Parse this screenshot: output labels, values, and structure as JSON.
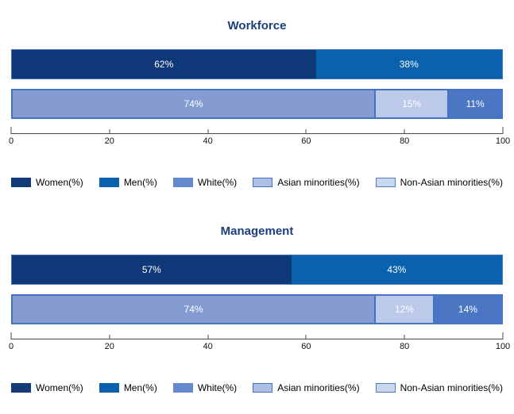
{
  "style": {
    "title_color": "#1b3e7d",
    "axis_color": "#4a4a4a",
    "tick_label_color": "#111111",
    "bar_value_label_color": "#ffffff"
  },
  "chart_data": [
    {
      "type": "bar",
      "stacked": true,
      "orientation": "horizontal",
      "title": "Workforce",
      "xlim": [
        0,
        100
      ],
      "x_ticks": [
        0,
        20,
        40,
        60,
        80,
        100
      ],
      "grid": false,
      "legend_position": "bottom",
      "rows": [
        {
          "category": "gender",
          "border": "#4a77c5",
          "segment_dividers": false,
          "segments": [
            {
              "key": "women",
              "name": "Women(%)",
              "value": 62,
              "label": "62%",
              "fill": "#0e3878"
            },
            {
              "key": "men",
              "name": "Men(%)",
              "value": 38,
              "label": "38%",
              "fill": "#0a61ae"
            }
          ]
        },
        {
          "category": "ethnicity",
          "border": "#4472c4",
          "segment_dividers": true,
          "segments": [
            {
              "key": "white",
              "name": "White(%)",
              "value": 74,
              "label": "74%",
              "fill": "#849cd2"
            },
            {
              "key": "asian-minorities",
              "name": "Asian minorities(%)",
              "value": 15,
              "label": "15%",
              "fill": "#bdc9e9"
            },
            {
              "key": "non-asian-minorities",
              "name": "Non-Asian minorities(%)",
              "value": 11,
              "label": "11%",
              "fill": "#4a76c4"
            }
          ]
        }
      ],
      "legend": [
        {
          "key": "women",
          "label": "Women(%)",
          "fill": "#143a78",
          "border": "#143a78"
        },
        {
          "key": "men",
          "label": "Men(%)",
          "fill": "#0b61ad",
          "border": "#0b61ad"
        },
        {
          "key": "white",
          "label": "White(%)",
          "fill": "#6589cd",
          "border": "#6589cd"
        },
        {
          "key": "asian-minorities",
          "label": "Asian minorities(%)",
          "fill": "#aebfe4",
          "border": "#4472c4"
        },
        {
          "key": "non-asian-minorities",
          "label": "Non-Asian minorities(%)",
          "fill": "#c9d7ef",
          "border": "#4f7ec2"
        }
      ]
    },
    {
      "type": "bar",
      "stacked": true,
      "orientation": "horizontal",
      "title": "Management",
      "xlim": [
        0,
        100
      ],
      "x_ticks": [
        0,
        20,
        40,
        60,
        80,
        100
      ],
      "grid": false,
      "legend_position": "bottom",
      "rows": [
        {
          "category": "gender",
          "border": "#4a77c5",
          "segment_dividers": false,
          "segments": [
            {
              "key": "women",
              "name": "Women(%)",
              "value": 57,
              "label": "57%",
              "fill": "#0e3878"
            },
            {
              "key": "men",
              "name": "Men(%)",
              "value": 43,
              "label": "43%",
              "fill": "#0a61ae"
            }
          ]
        },
        {
          "category": "ethnicity",
          "border": "#4472c4",
          "segment_dividers": true,
          "segments": [
            {
              "key": "white",
              "name": "White(%)",
              "value": 74,
              "label": "74%",
              "fill": "#849cd2"
            },
            {
              "key": "asian-minorities",
              "name": "Asian minorities(%)",
              "value": 12,
              "label": "12%",
              "fill": "#bdc9e9"
            },
            {
              "key": "non-asian-minorities",
              "name": "Non-Asian minorities(%)",
              "value": 14,
              "label": "14%",
              "fill": "#4a76c4"
            }
          ]
        }
      ],
      "legend": [
        {
          "key": "women",
          "label": "Women(%)",
          "fill": "#143a78",
          "border": "#143a78"
        },
        {
          "key": "men",
          "label": "Men(%)",
          "fill": "#0b61ad",
          "border": "#0b61ad"
        },
        {
          "key": "white",
          "label": "White(%)",
          "fill": "#6589cd",
          "border": "#6589cd"
        },
        {
          "key": "asian-minorities",
          "label": "Asian minorities(%)",
          "fill": "#aebfe4",
          "border": "#4472c4"
        },
        {
          "key": "non-asian-minorities",
          "label": "Non-Asian minorities(%)",
          "fill": "#c9d7ef",
          "border": "#4f7ec2"
        }
      ]
    }
  ]
}
